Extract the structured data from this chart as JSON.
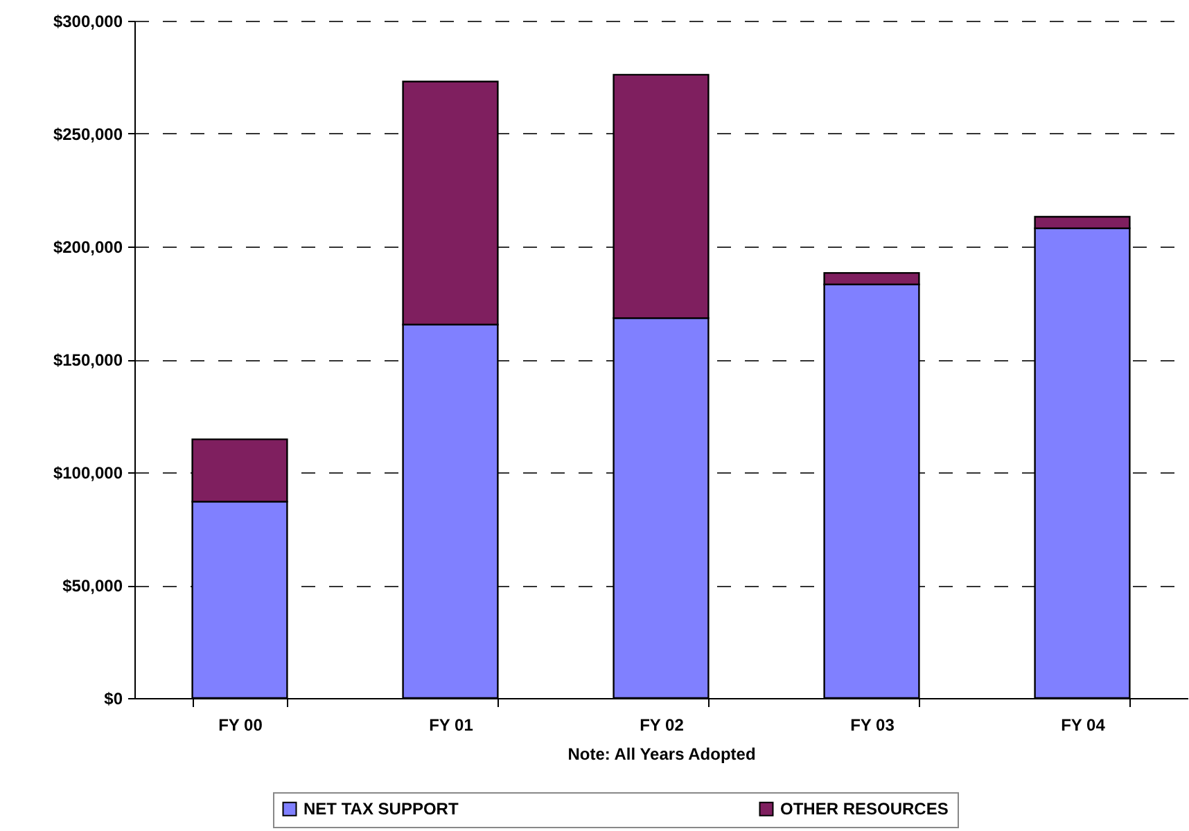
{
  "chart_data": {
    "type": "bar",
    "stacked": true,
    "xlabel": "Note: All Years Adopted",
    "categories": [
      "FY 00",
      "FY 01",
      "FY 02",
      "FY 03",
      "FY 04"
    ],
    "series": [
      {
        "name": "NET TAX SUPPORT",
        "color": "#8080ff",
        "values": [
          87000,
          165400,
          168300,
          183200,
          208100
        ]
      },
      {
        "name": "OTHER RESOURCES",
        "color": "#7f1f5f",
        "values": [
          27600,
          107700,
          107800,
          5100,
          5100
        ]
      }
    ],
    "ylim": [
      0,
      300000
    ],
    "yticks": [
      {
        "value": 0,
        "label": "$0"
      },
      {
        "value": 50000,
        "label": "$50,000"
      },
      {
        "value": 100000,
        "label": "$100,000"
      },
      {
        "value": 150000,
        "label": "$150,000"
      },
      {
        "value": 200000,
        "label": "$200,000"
      },
      {
        "value": 250000,
        "label": "$250,000"
      },
      {
        "value": 300000,
        "label": "$300,000"
      }
    ],
    "grid": "y",
    "legend": "bottom"
  }
}
